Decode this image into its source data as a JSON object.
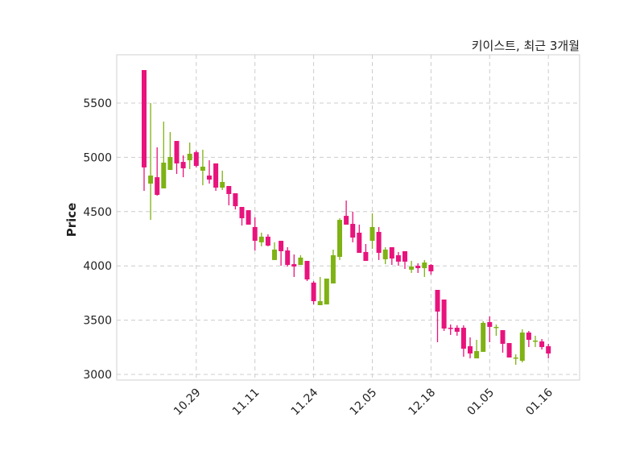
{
  "chart_data": {
    "type": "candlestick",
    "title": "키이스트, 최근 3개월",
    "xlabel": "",
    "ylabel": "Price",
    "ylim": [
      2960,
      5940
    ],
    "yticks": [
      3000,
      3500,
      4000,
      4500,
      5000,
      5500
    ],
    "xticks": [
      {
        "index": 8,
        "label": "10.29"
      },
      {
        "index": 17,
        "label": "11.11"
      },
      {
        "index": 26,
        "label": "11.24"
      },
      {
        "index": 35,
        "label": "12.05"
      },
      {
        "index": 44,
        "label": "12.18"
      },
      {
        "index": 53,
        "label": "01.05"
      },
      {
        "index": 62,
        "label": "01.16"
      }
    ],
    "grid": true,
    "colors": {
      "up": "#7fb214",
      "down": "#e8137c",
      "grid": "#cccccc",
      "frame": "#d9d9d9"
    },
    "ohlc": [
      [
        5804,
        5804,
        4691,
        4907
      ],
      [
        4758,
        5500,
        4424,
        4832
      ],
      [
        4817,
        5092,
        4647,
        4654
      ],
      [
        4714,
        5329,
        4714,
        4951
      ],
      [
        4884,
        5233,
        4884,
        5003
      ],
      [
        5151,
        5151,
        4847,
        4944
      ],
      [
        4958,
        5018,
        4817,
        4899
      ],
      [
        4973,
        5136,
        4892,
        5033
      ],
      [
        5047,
        5062,
        4907,
        4921
      ],
      [
        4877,
        5070,
        4743,
        4914
      ],
      [
        4832,
        4973,
        4758,
        4795
      ],
      [
        4944,
        4944,
        4691,
        4721
      ],
      [
        4721,
        4877,
        4699,
        4773
      ],
      [
        4736,
        4736,
        4558,
        4662
      ],
      [
        4669,
        4669,
        4520,
        4550
      ],
      [
        4543,
        4543,
        4372,
        4439
      ],
      [
        4513,
        4513,
        4380,
        4380
      ],
      [
        4358,
        4447,
        4142,
        4231
      ],
      [
        4217,
        4306,
        4180,
        4269
      ],
      [
        4269,
        4291,
        4180,
        4187
      ],
      [
        4054,
        4217,
        4054,
        4150
      ],
      [
        4231,
        4231,
        4001,
        4135
      ],
      [
        4142,
        4172,
        3994,
        4009
      ],
      [
        4016,
        4105,
        3898,
        3994
      ],
      [
        4009,
        4098,
        4009,
        4076
      ],
      [
        4046,
        4046,
        3860,
        3875
      ],
      [
        3846,
        3860,
        3645,
        3675
      ],
      [
        3638,
        3898,
        3638,
        3675
      ],
      [
        3645,
        3883,
        3645,
        3883
      ],
      [
        3838,
        4150,
        3838,
        4098
      ],
      [
        4083,
        4439,
        4054,
        4424
      ],
      [
        4461,
        4602,
        4380,
        4380
      ],
      [
        4387,
        4499,
        4217,
        4261
      ],
      [
        4306,
        4380,
        4120,
        4120
      ],
      [
        4128,
        4202,
        4046,
        4046
      ],
      [
        4231,
        4484,
        4157,
        4358
      ],
      [
        4313,
        4358,
        4054,
        4120
      ],
      [
        4061,
        4172,
        4016,
        4150
      ],
      [
        4172,
        4172,
        4009,
        4068
      ],
      [
        4098,
        4128,
        4001,
        4039
      ],
      [
        4135,
        4135,
        3972,
        4039
      ],
      [
        3965,
        4046,
        3935,
        3994
      ],
      [
        4001,
        4024,
        3935,
        3979
      ],
      [
        3979,
        4054,
        3898,
        4031
      ],
      [
        4009,
        4016,
        3920,
        3950
      ],
      [
        3779,
        3779,
        3297,
        3579
      ],
      [
        3690,
        3690,
        3401,
        3423
      ],
      [
        3430,
        3460,
        3364,
        3423
      ],
      [
        3430,
        3453,
        3356,
        3393
      ],
      [
        3430,
        3453,
        3163,
        3237
      ],
      [
        3260,
        3341,
        3148,
        3193
      ],
      [
        3148,
        3319,
        3148,
        3215
      ],
      [
        3208,
        3490,
        3208,
        3475
      ],
      [
        3482,
        3534,
        3297,
        3438
      ],
      [
        3438,
        3460,
        3356,
        3438
      ],
      [
        3408,
        3408,
        3200,
        3282
      ],
      [
        3289,
        3289,
        3156,
        3156
      ],
      [
        3156,
        3185,
        3089,
        3156
      ],
      [
        3126,
        3416,
        3111,
        3386
      ],
      [
        3386,
        3401,
        3252,
        3319
      ],
      [
        3304,
        3356,
        3252,
        3312
      ],
      [
        3304,
        3326,
        3230,
        3252
      ],
      [
        3260,
        3282,
        3148,
        3193
      ]
    ]
  }
}
